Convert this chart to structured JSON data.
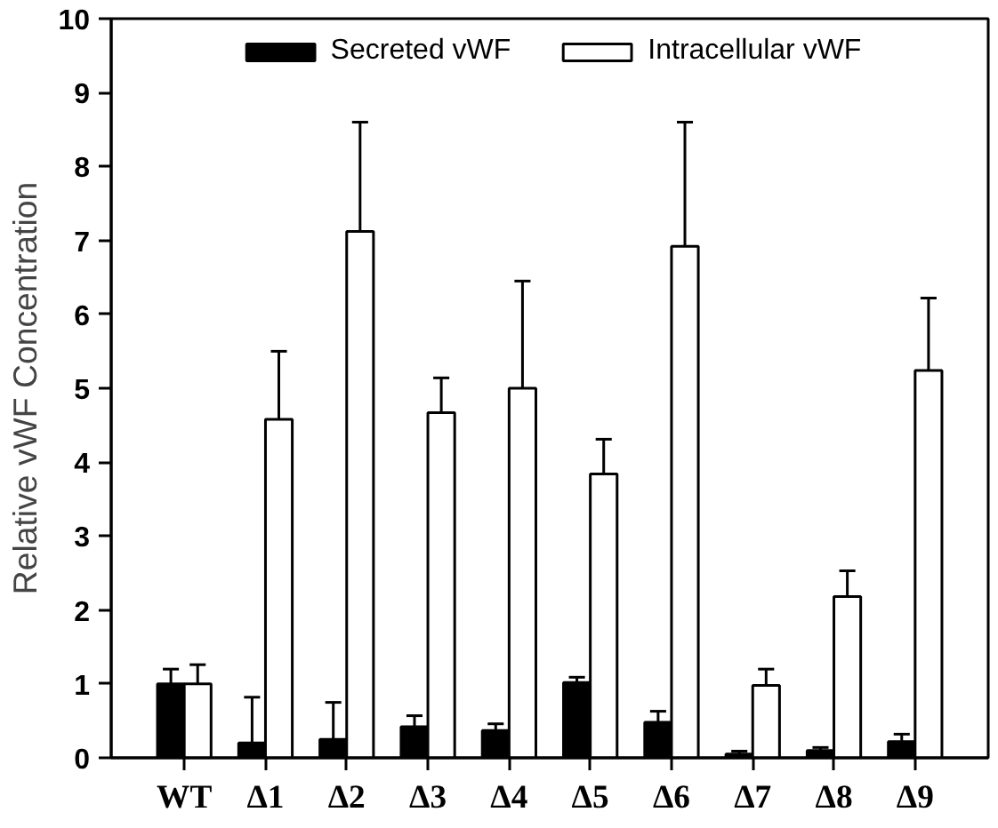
{
  "chart_data": {
    "type": "bar",
    "ylabel": "Relative vWF Concentration",
    "categories": [
      "WT",
      "Δ1",
      "Δ2",
      "Δ3",
      "Δ4",
      "Δ5",
      "Δ6",
      "Δ7",
      "Δ8",
      "Δ9"
    ],
    "series": [
      {
        "name": "Secreted vWF",
        "color": "#000000",
        "values": [
          1.0,
          0.2,
          0.25,
          0.42,
          0.37,
          1.02,
          0.48,
          0.05,
          0.1,
          0.22
        ],
        "errors": [
          [
            1.0,
            1.2
          ],
          [
            0.2,
            0.82
          ],
          [
            0.25,
            0.75
          ],
          [
            0.42,
            0.57
          ],
          [
            0.37,
            0.46
          ],
          [
            1.02,
            1.09
          ],
          [
            0.48,
            0.63
          ],
          [
            0.05,
            0.09
          ],
          [
            0.1,
            0.14
          ],
          [
            0.22,
            0.32
          ]
        ]
      },
      {
        "name": "Intracellular vWF",
        "color": "#ffffff",
        "values": [
          1.0,
          4.58,
          7.12,
          4.67,
          5.0,
          3.84,
          6.92,
          0.98,
          2.18,
          5.24
        ],
        "errors": [
          [
            1.0,
            1.26
          ],
          [
            4.58,
            5.5
          ],
          [
            7.12,
            8.6
          ],
          [
            4.67,
            5.14
          ],
          [
            5.0,
            6.45
          ],
          [
            3.84,
            4.31
          ],
          [
            6.92,
            8.6
          ],
          [
            0.98,
            1.2
          ],
          [
            2.18,
            2.53
          ],
          [
            5.24,
            6.22
          ]
        ]
      }
    ],
    "ylim": [
      0,
      10
    ],
    "yticks": [
      0,
      1,
      2,
      3,
      4,
      5,
      6,
      7,
      8,
      9,
      10
    ],
    "grid": false,
    "legend": "top"
  }
}
